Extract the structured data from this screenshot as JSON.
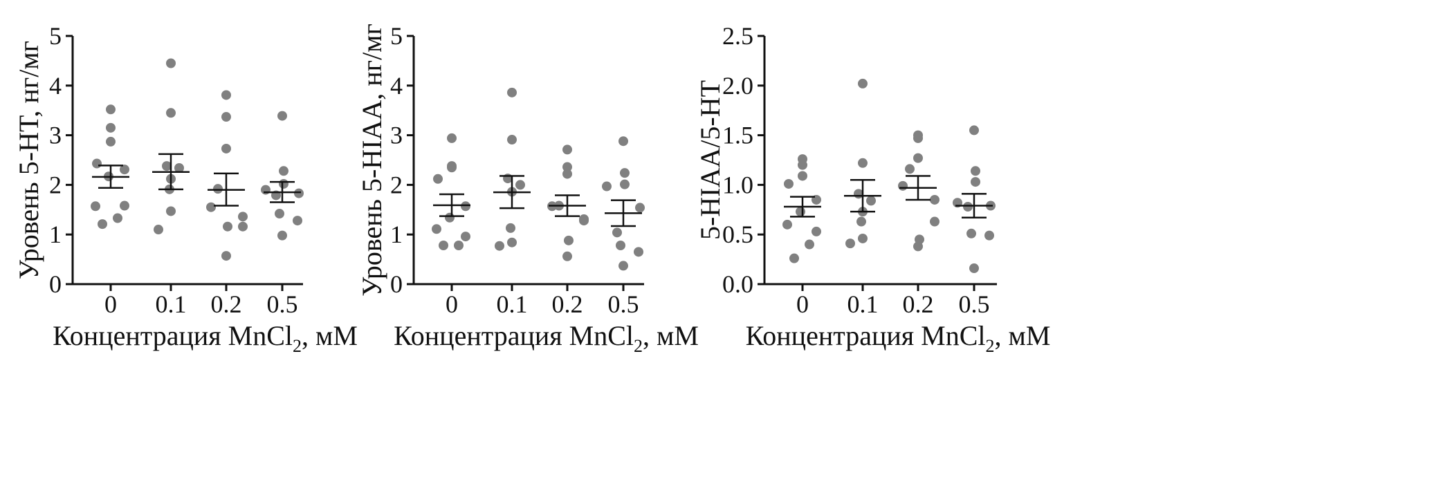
{
  "chart_data": [
    {
      "type": "scatter",
      "xlabel": "Концентрация MnCl",
      "xlabel_sub": "2",
      "xlabel_suffix": ", мМ",
      "ylabel": "Уровень 5-HT, нг/мг",
      "categories": [
        "0",
        "0.1",
        "0.2",
        "0.5"
      ],
      "ylim": [
        0,
        5
      ],
      "yticks": [
        "0",
        "1",
        "2",
        "3",
        "4",
        "5"
      ],
      "grid": false,
      "point_color": "#808080",
      "error_color": "#111111",
      "series": [
        {
          "category": "0",
          "values": [
            3.52,
            3.15,
            2.87,
            2.43,
            2.31,
            2.17,
            1.57,
            1.58,
            1.33,
            1.21
          ],
          "mean": 2.16,
          "sem_low": 1.94,
          "sem_high": 2.39
        },
        {
          "category": "0.1",
          "values": [
            4.45,
            3.45,
            2.38,
            2.34,
            2.12,
            1.91,
            1.47,
            1.1
          ],
          "mean": 2.26,
          "sem_low": 1.91,
          "sem_high": 2.62
        },
        {
          "category": "0.2",
          "values": [
            3.81,
            3.37,
            2.73,
            1.92,
            1.55,
            1.36,
            1.16,
            1.16,
            0.57
          ],
          "mean": 1.9,
          "sem_low": 1.58,
          "sem_high": 2.23
        },
        {
          "category": "0.5",
          "values": [
            3.39,
            2.28,
            2.02,
            1.9,
            1.83,
            1.79,
            1.42,
            1.28,
            0.98
          ],
          "mean": 1.85,
          "sem_low": 1.65,
          "sem_high": 2.06
        }
      ]
    },
    {
      "type": "scatter",
      "xlabel": "Концентрация MnCl",
      "xlabel_sub": "2",
      "xlabel_suffix": ", мМ",
      "ylabel": "Уровень 5-HIAA, нг/мг",
      "categories": [
        "0",
        "0.1",
        "0.2",
        "0.5"
      ],
      "ylim": [
        0,
        5
      ],
      "yticks": [
        "0",
        "1",
        "2",
        "3",
        "4",
        "5"
      ],
      "grid": false,
      "point_color": "#808080",
      "error_color": "#111111",
      "series": [
        {
          "category": "0",
          "values": [
            2.94,
            2.38,
            2.35,
            2.12,
            1.57,
            1.34,
            1.11,
            0.96,
            0.78,
            0.78
          ],
          "mean": 1.59,
          "sem_low": 1.37,
          "sem_high": 1.81
        },
        {
          "category": "0.1",
          "values": [
            3.86,
            2.91,
            2.13,
            2.0,
            1.86,
            1.13,
            0.84,
            0.77
          ],
          "mean": 1.85,
          "sem_low": 1.53,
          "sem_high": 2.18
        },
        {
          "category": "0.2",
          "values": [
            2.71,
            2.36,
            2.22,
            1.58,
            1.57,
            1.31,
            1.28,
            0.88,
            0.56
          ],
          "mean": 1.58,
          "sem_low": 1.37,
          "sem_high": 1.79
        },
        {
          "category": "0.5",
          "values": [
            2.88,
            2.24,
            2.01,
            1.97,
            1.54,
            1.04,
            0.78,
            0.65,
            0.37
          ],
          "mean": 1.43,
          "sem_low": 1.17,
          "sem_high": 1.69
        }
      ]
    },
    {
      "type": "scatter",
      "xlabel": "Концентрация MnCl",
      "xlabel_sub": "2",
      "xlabel_suffix": ", мМ",
      "ylabel": "5-HIAA/5-HT",
      "categories": [
        "0",
        "0.1",
        "0.2",
        "0.5"
      ],
      "ylim": [
        0,
        2.5
      ],
      "yticks": [
        "0.0",
        "0.5",
        "1.0",
        "1.5",
        "2.0",
        "2.5"
      ],
      "grid": false,
      "point_color": "#808080",
      "error_color": "#111111",
      "series": [
        {
          "category": "0",
          "values": [
            1.26,
            1.2,
            1.09,
            1.01,
            0.85,
            0.73,
            0.6,
            0.53,
            0.4,
            0.26
          ],
          "mean": 0.78,
          "sem_low": 0.68,
          "sem_high": 0.88
        },
        {
          "category": "0.1",
          "values": [
            2.02,
            1.22,
            0.91,
            0.84,
            0.73,
            0.63,
            0.46,
            0.41
          ],
          "mean": 0.89,
          "sem_low": 0.73,
          "sem_high": 1.05
        },
        {
          "category": "0.2",
          "values": [
            1.5,
            1.47,
            1.27,
            1.16,
            0.99,
            0.85,
            0.63,
            0.45,
            0.38
          ],
          "mean": 0.97,
          "sem_low": 0.85,
          "sem_high": 1.09
        },
        {
          "category": "0.5",
          "values": [
            1.55,
            1.14,
            1.03,
            0.82,
            0.79,
            0.78,
            0.51,
            0.49,
            0.16
          ],
          "mean": 0.79,
          "sem_low": 0.67,
          "sem_high": 0.91
        }
      ]
    }
  ]
}
